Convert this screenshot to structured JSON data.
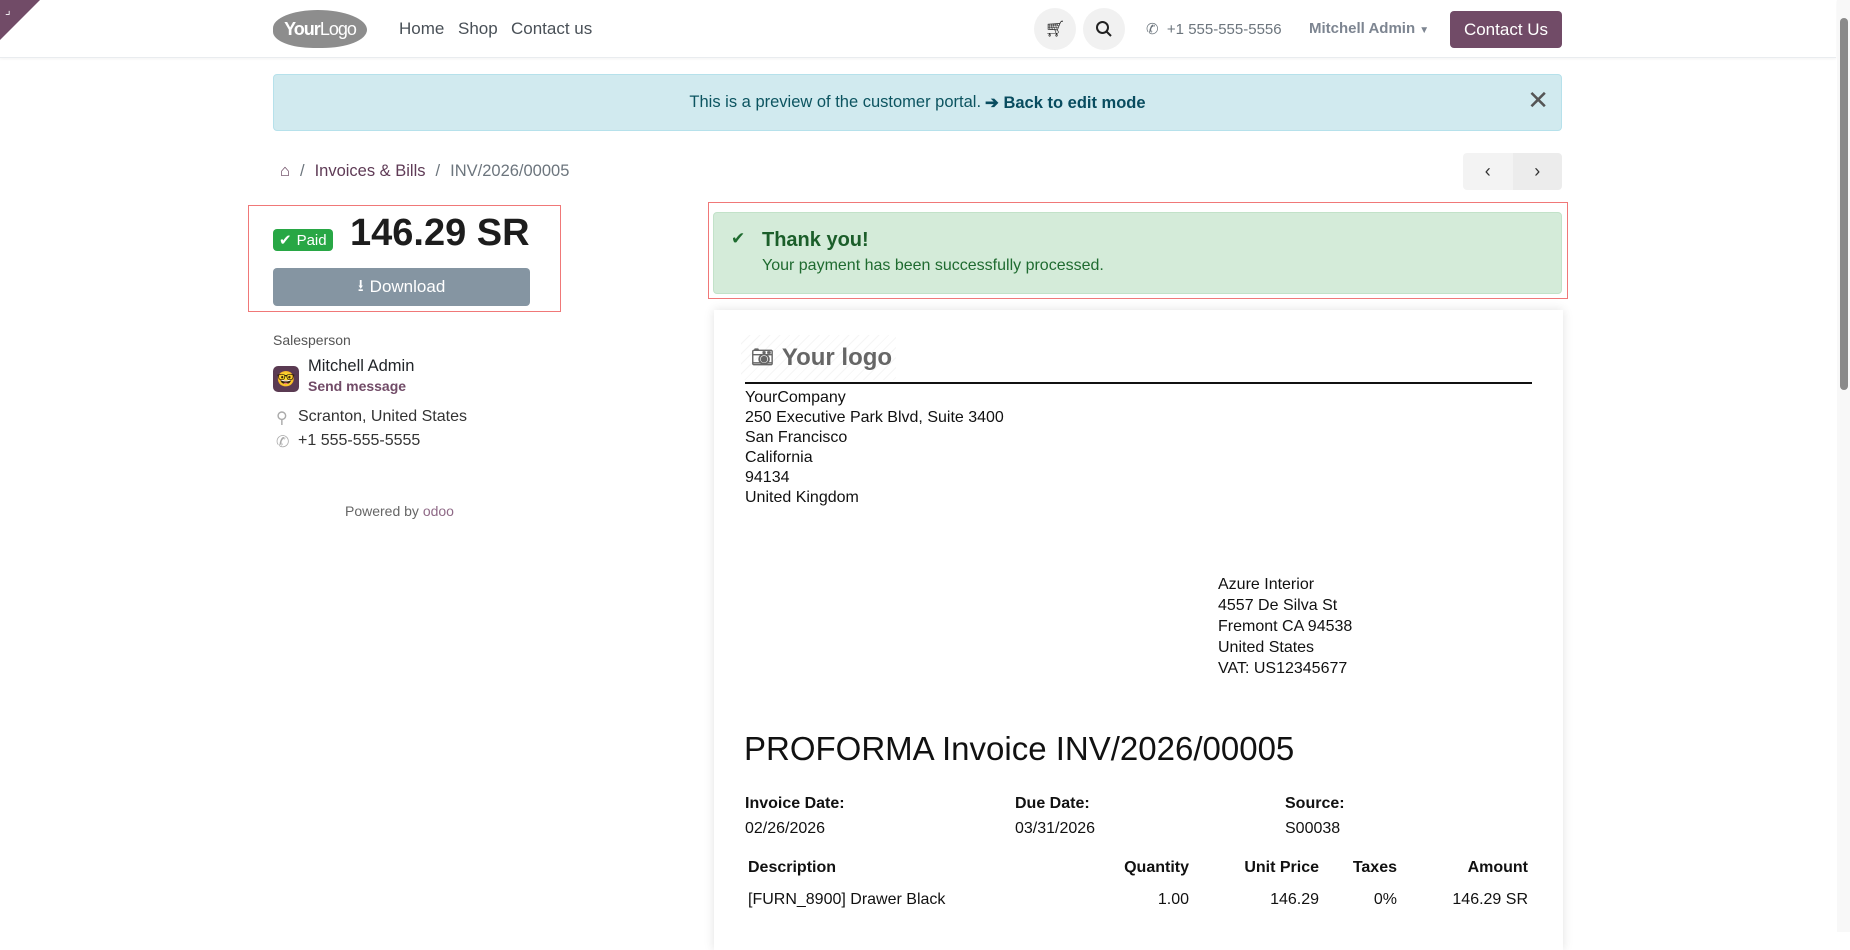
{
  "navbar": {
    "logo_text_bold": "Your",
    "logo_text": "Logo",
    "links": [
      "Home",
      "Shop",
      "Contact us"
    ],
    "phone": "+1 555-555-5556",
    "user": "Mitchell Admin",
    "contact_button": "Contact Us"
  },
  "alert": {
    "text": "This is a preview of the customer portal.",
    "link": "➔ Back to edit mode"
  },
  "breadcrumb": {
    "items": [
      "Invoices & Bills",
      "INV/2026/00005"
    ]
  },
  "summary": {
    "status": "Paid",
    "amount": "146.29 SR",
    "download": "Download"
  },
  "salesperson": {
    "label": "Salesperson",
    "name": "Mitchell Admin",
    "send_message": "Send message",
    "location": "Scranton, United States",
    "phone": "+1 555-555-5555"
  },
  "footer": {
    "powered_by": "Powered by",
    "brand": "odoo"
  },
  "success": {
    "title": "Thank you!",
    "message": "Your payment has been successfully processed."
  },
  "invoice": {
    "logo_text": "Your logo",
    "company": [
      "YourCompany",
      "250 Executive Park Blvd, Suite 3400",
      "San Francisco",
      "California",
      "94134",
      "United Kingdom"
    ],
    "customer": [
      "Azure Interior",
      "4557 De Silva St",
      "Fremont CA 94538",
      "United States",
      "VAT: US12345677"
    ],
    "title": "PROFORMA Invoice INV/2026/00005",
    "fields": [
      {
        "label": "Invoice Date:",
        "value": "02/26/2026"
      },
      {
        "label": "Due Date:",
        "value": "03/31/2026"
      },
      {
        "label": "Source:",
        "value": "S00038"
      }
    ],
    "columns": [
      "Description",
      "Quantity",
      "Unit Price",
      "Taxes",
      "Amount"
    ],
    "rows": [
      [
        "[FURN_8900] Drawer Black",
        "1.00",
        "146.29",
        "0%",
        "146.29 SR"
      ]
    ]
  },
  "colors": {
    "brand": "#714b67",
    "paid": "#28a745",
    "alert_bg": "#d1eaef",
    "success_bg": "#d4ebd9"
  }
}
